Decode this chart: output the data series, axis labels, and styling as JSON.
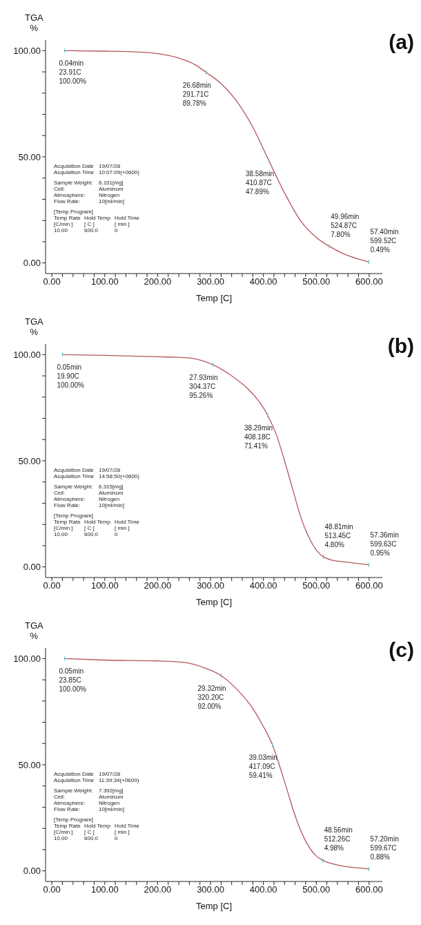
{
  "chart_data": [
    {
      "type": "line",
      "title": "(a)",
      "xlabel": "Temp  [C]",
      "ylabel": "TGA\n%",
      "xlim": [
        -12,
        625
      ],
      "ylim": [
        -5,
        105
      ],
      "xticks": [
        {
          "value": 0,
          "label": "0.00"
        },
        {
          "value": 20,
          "label": null
        },
        {
          "value": 40,
          "label": null
        },
        {
          "value": 60,
          "label": null
        },
        {
          "value": 80,
          "label": null
        },
        {
          "value": 100,
          "label": "100.00"
        },
        {
          "value": 120,
          "label": null
        },
        {
          "value": 140,
          "label": null
        },
        {
          "value": 160,
          "label": null
        },
        {
          "value": 180,
          "label": null
        },
        {
          "value": 200,
          "label": "200.00"
        },
        {
          "value": 220,
          "label": null
        },
        {
          "value": 240,
          "label": null
        },
        {
          "value": 260,
          "label": null
        },
        {
          "value": 280,
          "label": null
        },
        {
          "value": 300,
          "label": "300.00"
        },
        {
          "value": 320,
          "label": null
        },
        {
          "value": 340,
          "label": null
        },
        {
          "value": 360,
          "label": null
        },
        {
          "value": 380,
          "label": null
        },
        {
          "value": 400,
          "label": "400.00"
        },
        {
          "value": 420,
          "label": null
        },
        {
          "value": 440,
          "label": null
        },
        {
          "value": 460,
          "label": null
        },
        {
          "value": 480,
          "label": null
        },
        {
          "value": 500,
          "label": "500.00"
        },
        {
          "value": 520,
          "label": null
        },
        {
          "value": 540,
          "label": null
        },
        {
          "value": 560,
          "label": null
        },
        {
          "value": 580,
          "label": null
        },
        {
          "value": 600,
          "label": "600.00"
        }
      ],
      "yticks": [
        {
          "value": 0,
          "label": "0.00"
        },
        {
          "value": 10,
          "label": null
        },
        {
          "value": 20,
          "label": null
        },
        {
          "value": 30,
          "label": null
        },
        {
          "value": 40,
          "label": null
        },
        {
          "value": 50,
          "label": "50.00"
        },
        {
          "value": 60,
          "label": null
        },
        {
          "value": 70,
          "label": null
        },
        {
          "value": 80,
          "label": null
        },
        {
          "value": 90,
          "label": null
        },
        {
          "value": 100,
          "label": "100.00"
        }
      ],
      "series": [
        {
          "color": "#b5555a",
          "x": [
            23.91,
            50,
            100,
            150,
            200,
            240,
            270,
            291.71,
            320,
            350,
            380,
            410.87,
            440,
            470,
            500,
            524.87,
            550,
            575,
            599.52
          ],
          "values": [
            100,
            99.95,
            99.8,
            99.5,
            98.6,
            96.5,
            93.5,
            89.78,
            84.5,
            76,
            64,
            47.89,
            33,
            20,
            12,
            7.8,
            4.5,
            2.2,
            0.49
          ]
        }
      ],
      "annotations": [
        {
          "text": "0.04min\n23.91C\n100.00%",
          "x": 23.91,
          "y": 100
        },
        {
          "text": "26.68min\n291.71C\n89.78%",
          "x": 291.71,
          "y": 89.78
        },
        {
          "text": "38.58min\n410.87C\n47.89%",
          "x": 410.87,
          "y": 47.89
        },
        {
          "text": "49.96min\n524.87C\n7.80%",
          "x": 524.87,
          "y": 7.8
        },
        {
          "text": "57.40min\n599.52C\n0.49%",
          "x": 599.52,
          "y": 0.49
        },
        "Acquisition Date\t19/07/28",
        "Acquisition Time\t10:07:09(+0600)",
        "Sample Weight:\t6.151[mg]",
        "Cell:\tAluminum",
        "Atmosphere:\tNitrogen",
        "Flow Rate:\t10[ml/min]",
        "[Temp Program]",
        "Temp Rate\tHold Temp\tHold Time",
        "[C/min ]\t[ C ]\t[ min ]",
        "10.00\t600.0\t0"
      ]
    },
    {
      "type": "line",
      "title": "(b)",
      "xlabel": "Temp  [C]",
      "ylabel": "TGA\n%",
      "xlim": [
        -12,
        625
      ],
      "ylim": [
        -5,
        105
      ],
      "xticks": [
        {
          "value": 0,
          "label": "0.00"
        },
        {
          "value": 20,
          "label": null
        },
        {
          "value": 40,
          "label": null
        },
        {
          "value": 60,
          "label": null
        },
        {
          "value": 80,
          "label": null
        },
        {
          "value": 100,
          "label": "100.00"
        },
        {
          "value": 120,
          "label": null
        },
        {
          "value": 140,
          "label": null
        },
        {
          "value": 160,
          "label": null
        },
        {
          "value": 180,
          "label": null
        },
        {
          "value": 200,
          "label": "200.00"
        },
        {
          "value": 220,
          "label": null
        },
        {
          "value": 240,
          "label": null
        },
        {
          "value": 260,
          "label": null
        },
        {
          "value": 280,
          "label": null
        },
        {
          "value": 300,
          "label": "300.00"
        },
        {
          "value": 320,
          "label": null
        },
        {
          "value": 340,
          "label": null
        },
        {
          "value": 360,
          "label": null
        },
        {
          "value": 380,
          "label": null
        },
        {
          "value": 400,
          "label": "400.00"
        },
        {
          "value": 420,
          "label": null
        },
        {
          "value": 440,
          "label": null
        },
        {
          "value": 460,
          "label": null
        },
        {
          "value": 480,
          "label": null
        },
        {
          "value": 500,
          "label": "500.00"
        },
        {
          "value": 520,
          "label": null
        },
        {
          "value": 540,
          "label": null
        },
        {
          "value": 560,
          "label": null
        },
        {
          "value": 580,
          "label": null
        },
        {
          "value": 600,
          "label": "600.00"
        }
      ],
      "yticks": [
        {
          "value": 0,
          "label": "0.00"
        },
        {
          "value": 10,
          "label": null
        },
        {
          "value": 20,
          "label": null
        },
        {
          "value": 30,
          "label": null
        },
        {
          "value": 40,
          "label": null
        },
        {
          "value": 50,
          "label": "50.00"
        },
        {
          "value": 60,
          "label": null
        },
        {
          "value": 70,
          "label": null
        },
        {
          "value": 80,
          "label": null
        },
        {
          "value": 90,
          "label": null
        },
        {
          "value": 100,
          "label": "100.00"
        }
      ],
      "series": [
        {
          "color": "#b5555a",
          "x": [
            19.9,
            100,
            200,
            250,
            280,
            304.37,
            340,
            370,
            390,
            408.18,
            425,
            440,
            455,
            470,
            490,
            505,
            513.45,
            530,
            560,
            599.63
          ],
          "values": [
            100,
            99.7,
            99,
            98.6,
            97.5,
            95.26,
            90,
            84,
            78.5,
            71.41,
            62,
            50,
            37,
            24,
            12,
            6.5,
            4.8,
            3.2,
            2.2,
            0.95
          ]
        }
      ],
      "annotations": [
        {
          "text": "0.05min\n19.90C\n100.00%",
          "x": 19.9,
          "y": 100
        },
        {
          "text": "27.93min\n304.37C\n95.26%",
          "x": 304.37,
          "y": 95.26
        },
        {
          "text": "38.29min\n408.18C\n71.41%",
          "x": 408.18,
          "y": 71.41
        },
        {
          "text": "48.81min\n513.45C\n4.80%",
          "x": 513.45,
          "y": 4.8
        },
        {
          "text": "57.36min\n599.63C\n0.95%",
          "x": 599.63,
          "y": 0.95
        },
        "Acquisition Date\t19/07/28",
        "Acquisition Time\t14:58:50(+0600)",
        "Sample Weight:\t6.315[mg]",
        "Cell:\tAluminum",
        "Atmosphere:\tNitrogen",
        "Flow Rate:\t10[ml/min]",
        "[Temp Program]",
        "Temp Rate\tHold Temp\tHold Time",
        "[C/min ]\t[ C ]\t[ min ]",
        "10.00\t600.0\t0"
      ]
    },
    {
      "type": "line",
      "title": "(c)",
      "xlabel": "Temp  [C]",
      "ylabel": "TGA\n%",
      "xlim": [
        -12,
        625
      ],
      "ylim": [
        -5,
        105
      ],
      "xticks": [
        {
          "value": 0,
          "label": "0.00"
        },
        {
          "value": 20,
          "label": null
        },
        {
          "value": 40,
          "label": null
        },
        {
          "value": 60,
          "label": null
        },
        {
          "value": 80,
          "label": null
        },
        {
          "value": 100,
          "label": "100.00"
        },
        {
          "value": 120,
          "label": null
        },
        {
          "value": 140,
          "label": null
        },
        {
          "value": 160,
          "label": null
        },
        {
          "value": 180,
          "label": null
        },
        {
          "value": 200,
          "label": "200.00"
        },
        {
          "value": 220,
          "label": null
        },
        {
          "value": 240,
          "label": null
        },
        {
          "value": 260,
          "label": null
        },
        {
          "value": 280,
          "label": null
        },
        {
          "value": 300,
          "label": "300.00"
        },
        {
          "value": 320,
          "label": null
        },
        {
          "value": 340,
          "label": null
        },
        {
          "value": 360,
          "label": null
        },
        {
          "value": 380,
          "label": null
        },
        {
          "value": 400,
          "label": "400.00"
        },
        {
          "value": 420,
          "label": null
        },
        {
          "value": 440,
          "label": null
        },
        {
          "value": 460,
          "label": null
        },
        {
          "value": 480,
          "label": null
        },
        {
          "value": 500,
          "label": "500.00"
        },
        {
          "value": 520,
          "label": null
        },
        {
          "value": 540,
          "label": null
        },
        {
          "value": 560,
          "label": null
        },
        {
          "value": 580,
          "label": null
        },
        {
          "value": 600,
          "label": "600.00"
        }
      ],
      "yticks": [
        {
          "value": 0,
          "label": "0.00"
        },
        {
          "value": 10,
          "label": null
        },
        {
          "value": 20,
          "label": null
        },
        {
          "value": 30,
          "label": null
        },
        {
          "value": 40,
          "label": null
        },
        {
          "value": 50,
          "label": "50.00"
        },
        {
          "value": 60,
          "label": null
        },
        {
          "value": 70,
          "label": null
        },
        {
          "value": 80,
          "label": null
        },
        {
          "value": 90,
          "label": null
        },
        {
          "value": 100,
          "label": "100.00"
        }
      ],
      "series": [
        {
          "color": "#b5555a",
          "x": [
            23.85,
            100,
            200,
            250,
            290,
            320.2,
            350,
            380,
            400,
            417.09,
            430,
            445,
            460,
            480,
            500,
            512.26,
            540,
            570,
            599.67
          ],
          "values": [
            100,
            99.3,
            98.9,
            98.2,
            95.5,
            92,
            85.5,
            76.5,
            68,
            59.41,
            50,
            38,
            26,
            14,
            7,
            4.98,
            2.8,
            1.6,
            0.88
          ]
        }
      ],
      "annotations": [
        {
          "text": "0.05min\n23.85C\n100.00%",
          "x": 23.85,
          "y": 100
        },
        {
          "text": "29.32min\n320.20C\n92.00%",
          "x": 320.2,
          "y": 92
        },
        {
          "text": "39.03min\n417.09C\n59.41%",
          "x": 417.09,
          "y": 59.41
        },
        {
          "text": "48.56min\n512.26C\n4.98%",
          "x": 512.26,
          "y": 4.98
        },
        {
          "text": "57.20min\n599.67C\n0.88%",
          "x": 599.67,
          "y": 0.88
        },
        "Acquisition Date\t19/07/28",
        "Acquisition Time\t11:39:34(+0600)",
        "Sample Weight:\t7.392[mg]",
        "Cell:\tAluminum",
        "Atmosphere:\tNitrogen",
        "Flow Rate:\t10[ml/min]",
        "[Temp Program]",
        "Temp Rate\tHold Temp\tHold Time",
        "[C/min ]\t[ C ]\t[ min ]",
        "10.00\t600.0\t0"
      ]
    }
  ]
}
